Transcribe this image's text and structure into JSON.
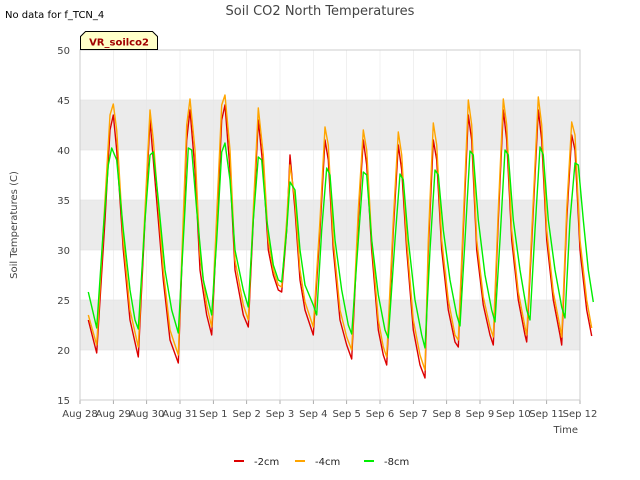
{
  "note": "No data for f_TCN_4",
  "badge": "VR_soilco2",
  "colors": {
    "band": "#ebebeb",
    "plot_bg": "#f4f4f4",
    "grid": "#ffffff",
    "frame": "#cccccc"
  },
  "chart_data": {
    "type": "line",
    "title": "Soil CO2 North Temperatures",
    "xlabel": "Time",
    "ylabel": "Soil Temperatures (C)",
    "ylim": [
      15,
      50
    ],
    "yticks": [
      15,
      20,
      25,
      30,
      35,
      40,
      45,
      50
    ],
    "xlim": [
      0,
      15
    ],
    "xticks": [
      "Aug 28",
      "Aug 29",
      "Aug 30",
      "Aug 31",
      "Sep 1",
      "Sep 2",
      "Sep 3",
      "Sep 4",
      "Sep 5",
      "Sep 6",
      "Sep 7",
      "Sep 8",
      "Sep 9",
      "Sep 10",
      "Sep 11",
      "Sep 12"
    ],
    "x_unit": "days since Aug 28 00:00",
    "legend_position": "bottom-center",
    "grid": true,
    "series": [
      {
        "name": "-2cm",
        "color": "#dd0000",
        "points": [
          [
            0.25,
            23
          ],
          [
            0.5,
            19.7
          ],
          [
            0.75,
            33
          ],
          [
            0.9,
            42
          ],
          [
            1.0,
            43.5
          ],
          [
            1.1,
            40
          ],
          [
            1.3,
            30
          ],
          [
            1.5,
            23
          ],
          [
            1.7,
            20
          ],
          [
            1.75,
            19.3
          ],
          [
            1.95,
            33
          ],
          [
            2.1,
            43
          ],
          [
            2.2,
            39
          ],
          [
            2.5,
            27
          ],
          [
            2.7,
            21
          ],
          [
            2.95,
            18.7
          ],
          [
            3.05,
            28
          ],
          [
            3.2,
            41
          ],
          [
            3.3,
            44
          ],
          [
            3.45,
            38
          ],
          [
            3.6,
            28
          ],
          [
            3.8,
            23.5
          ],
          [
            3.95,
            21.5
          ],
          [
            4.1,
            32
          ],
          [
            4.25,
            43
          ],
          [
            4.35,
            44.5
          ],
          [
            4.5,
            38
          ],
          [
            4.65,
            28
          ],
          [
            4.9,
            23.5
          ],
          [
            5.05,
            22.3
          ],
          [
            5.2,
            33
          ],
          [
            5.35,
            43
          ],
          [
            5.5,
            38
          ],
          [
            5.65,
            30
          ],
          [
            5.8,
            27.5
          ],
          [
            5.95,
            26
          ],
          [
            6.05,
            25.8
          ],
          [
            6.2,
            32
          ],
          [
            6.3,
            39.5
          ],
          [
            6.45,
            34
          ],
          [
            6.6,
            27
          ],
          [
            6.75,
            24
          ],
          [
            7.0,
            21.5
          ],
          [
            7.2,
            32
          ],
          [
            7.35,
            41
          ],
          [
            7.45,
            39
          ],
          [
            7.6,
            30
          ],
          [
            7.8,
            23
          ],
          [
            8.0,
            20.5
          ],
          [
            8.15,
            19.1
          ],
          [
            8.35,
            33
          ],
          [
            8.5,
            41
          ],
          [
            8.6,
            38.5
          ],
          [
            8.75,
            30
          ],
          [
            8.95,
            22
          ],
          [
            9.1,
            19.5
          ],
          [
            9.2,
            18.5
          ],
          [
            9.4,
            32
          ],
          [
            9.55,
            40.5
          ],
          [
            9.65,
            38
          ],
          [
            9.8,
            30
          ],
          [
            10.0,
            22
          ],
          [
            10.2,
            18.5
          ],
          [
            10.35,
            17.2
          ],
          [
            10.45,
            30
          ],
          [
            10.6,
            41
          ],
          [
            10.7,
            39
          ],
          [
            10.85,
            30
          ],
          [
            11.05,
            24
          ],
          [
            11.25,
            20.8
          ],
          [
            11.35,
            20.3
          ],
          [
            11.5,
            32
          ],
          [
            11.65,
            43.5
          ],
          [
            11.75,
            41
          ],
          [
            11.9,
            30
          ],
          [
            12.1,
            24.5
          ],
          [
            12.3,
            21.5
          ],
          [
            12.4,
            20.5
          ],
          [
            12.55,
            33
          ],
          [
            12.7,
            44
          ],
          [
            12.8,
            41
          ],
          [
            12.95,
            31
          ],
          [
            13.15,
            25
          ],
          [
            13.35,
            21.5
          ],
          [
            13.4,
            20.8
          ],
          [
            13.6,
            34
          ],
          [
            13.75,
            44
          ],
          [
            13.85,
            41
          ],
          [
            14.0,
            31
          ],
          [
            14.2,
            25
          ],
          [
            14.4,
            21.5
          ],
          [
            14.45,
            20.5
          ],
          [
            14.6,
            33
          ],
          [
            14.75,
            41.5
          ],
          [
            14.85,
            40
          ],
          [
            15.0,
            30
          ],
          [
            15.2,
            24
          ],
          [
            15.35,
            21.4
          ]
        ]
      },
      {
        "name": "-4cm",
        "color": "#ffa500",
        "points": [
          [
            0.25,
            23.5
          ],
          [
            0.5,
            20.5
          ],
          [
            0.75,
            35
          ],
          [
            0.9,
            43.5
          ],
          [
            1.0,
            44.6
          ],
          [
            1.1,
            42
          ],
          [
            1.3,
            31
          ],
          [
            1.5,
            24
          ],
          [
            1.7,
            21
          ],
          [
            1.75,
            20.3
          ],
          [
            1.95,
            34
          ],
          [
            2.1,
            44
          ],
          [
            2.2,
            41
          ],
          [
            2.5,
            28
          ],
          [
            2.7,
            22
          ],
          [
            2.95,
            19.5
          ],
          [
            3.05,
            29
          ],
          [
            3.2,
            42.5
          ],
          [
            3.3,
            45.1
          ],
          [
            3.45,
            40
          ],
          [
            3.6,
            29.5
          ],
          [
            3.8,
            24.5
          ],
          [
            3.95,
            22.3
          ],
          [
            4.1,
            33.5
          ],
          [
            4.25,
            44.5
          ],
          [
            4.35,
            45.5
          ],
          [
            4.5,
            40
          ],
          [
            4.65,
            29
          ],
          [
            4.9,
            24.5
          ],
          [
            5.05,
            23
          ],
          [
            5.2,
            34
          ],
          [
            5.35,
            44.2
          ],
          [
            5.5,
            39.5
          ],
          [
            5.65,
            31
          ],
          [
            5.8,
            28
          ],
          [
            5.95,
            26.5
          ],
          [
            6.05,
            26.3
          ],
          [
            6.2,
            33
          ],
          [
            6.3,
            38.5
          ],
          [
            6.45,
            35
          ],
          [
            6.6,
            28
          ],
          [
            6.75,
            24.8
          ],
          [
            7.0,
            22.3
          ],
          [
            7.2,
            33
          ],
          [
            7.35,
            42.3
          ],
          [
            7.45,
            40.5
          ],
          [
            7.6,
            31
          ],
          [
            7.8,
            24
          ],
          [
            8.0,
            21.3
          ],
          [
            8.15,
            20
          ],
          [
            8.35,
            34
          ],
          [
            8.5,
            42
          ],
          [
            8.6,
            40
          ],
          [
            8.75,
            31
          ],
          [
            8.95,
            23
          ],
          [
            9.1,
            20.3
          ],
          [
            9.2,
            19.3
          ],
          [
            9.4,
            33
          ],
          [
            9.55,
            41.8
          ],
          [
            9.65,
            39.5
          ],
          [
            9.8,
            31
          ],
          [
            10.0,
            23
          ],
          [
            10.2,
            19.5
          ],
          [
            10.35,
            18
          ],
          [
            10.45,
            31
          ],
          [
            10.6,
            42.7
          ],
          [
            10.7,
            40.5
          ],
          [
            10.85,
            31
          ],
          [
            11.05,
            25
          ],
          [
            11.25,
            21.5
          ],
          [
            11.35,
            21
          ],
          [
            11.5,
            33
          ],
          [
            11.65,
            45
          ],
          [
            11.75,
            42.5
          ],
          [
            11.9,
            31
          ],
          [
            12.1,
            25.3
          ],
          [
            12.3,
            22.3
          ],
          [
            12.4,
            21.3
          ],
          [
            12.55,
            34
          ],
          [
            12.7,
            45.1
          ],
          [
            12.8,
            42.5
          ],
          [
            12.95,
            32
          ],
          [
            13.15,
            25.8
          ],
          [
            13.35,
            22.3
          ],
          [
            13.4,
            21.5
          ],
          [
            13.6,
            35
          ],
          [
            13.75,
            45.3
          ],
          [
            13.85,
            42.5
          ],
          [
            14.0,
            32
          ],
          [
            14.2,
            25.8
          ],
          [
            14.4,
            22.3
          ],
          [
            14.45,
            21.3
          ],
          [
            14.6,
            34
          ],
          [
            14.75,
            42.8
          ],
          [
            14.85,
            41.5
          ],
          [
            15.0,
            31
          ],
          [
            15.2,
            25
          ],
          [
            15.35,
            22.2
          ]
        ]
      },
      {
        "name": "-8cm",
        "color": "#00ee00",
        "points": [
          [
            0.25,
            25.8
          ],
          [
            0.5,
            22.2
          ],
          [
            0.7,
            32
          ],
          [
            0.85,
            38.5
          ],
          [
            0.95,
            40.2
          ],
          [
            1.1,
            39
          ],
          [
            1.3,
            32
          ],
          [
            1.5,
            26
          ],
          [
            1.65,
            23
          ],
          [
            1.75,
            22.1
          ],
          [
            1.95,
            33
          ],
          [
            2.1,
            39.5
          ],
          [
            2.2,
            39.8
          ],
          [
            2.35,
            35
          ],
          [
            2.55,
            28
          ],
          [
            2.75,
            24
          ],
          [
            2.95,
            21.7
          ],
          [
            3.1,
            31
          ],
          [
            3.25,
            40.2
          ],
          [
            3.35,
            40
          ],
          [
            3.5,
            34
          ],
          [
            3.7,
            27
          ],
          [
            3.95,
            23.5
          ],
          [
            4.1,
            31
          ],
          [
            4.25,
            39.8
          ],
          [
            4.35,
            40.7
          ],
          [
            4.5,
            37
          ],
          [
            4.65,
            30
          ],
          [
            4.9,
            26
          ],
          [
            5.05,
            24.3
          ],
          [
            5.2,
            33
          ],
          [
            5.35,
            39.3
          ],
          [
            5.45,
            39
          ],
          [
            5.6,
            33
          ],
          [
            5.8,
            28.5
          ],
          [
            5.95,
            27
          ],
          [
            6.05,
            26.8
          ],
          [
            6.2,
            32
          ],
          [
            6.3,
            36.8
          ],
          [
            6.45,
            36
          ],
          [
            6.6,
            30
          ],
          [
            6.75,
            26.5
          ],
          [
            7.0,
            24.5
          ],
          [
            7.1,
            23.5
          ],
          [
            7.25,
            32
          ],
          [
            7.4,
            38.2
          ],
          [
            7.5,
            37.5
          ],
          [
            7.65,
            31
          ],
          [
            7.85,
            26
          ],
          [
            8.05,
            22.5
          ],
          [
            8.15,
            21.6
          ],
          [
            8.35,
            31
          ],
          [
            8.5,
            37.8
          ],
          [
            8.6,
            37.5
          ],
          [
            8.75,
            31
          ],
          [
            8.95,
            25.5
          ],
          [
            9.15,
            22
          ],
          [
            9.25,
            21.2
          ],
          [
            9.45,
            31
          ],
          [
            9.6,
            37.6
          ],
          [
            9.7,
            37
          ],
          [
            9.85,
            31
          ],
          [
            10.05,
            25
          ],
          [
            10.25,
            21.5
          ],
          [
            10.35,
            20.2
          ],
          [
            10.5,
            30
          ],
          [
            10.65,
            38
          ],
          [
            10.75,
            37.5
          ],
          [
            10.9,
            32
          ],
          [
            11.1,
            27
          ],
          [
            11.3,
            23.5
          ],
          [
            11.4,
            22.4
          ],
          [
            11.55,
            31
          ],
          [
            11.7,
            39.9
          ],
          [
            11.8,
            39.5
          ],
          [
            11.95,
            33
          ],
          [
            12.15,
            27.5
          ],
          [
            12.35,
            24
          ],
          [
            12.45,
            22.8
          ],
          [
            12.6,
            31
          ],
          [
            12.75,
            40
          ],
          [
            12.85,
            39.5
          ],
          [
            13.0,
            33
          ],
          [
            13.2,
            28
          ],
          [
            13.4,
            24
          ],
          [
            13.5,
            23
          ],
          [
            13.65,
            32
          ],
          [
            13.8,
            40.3
          ],
          [
            13.9,
            39.5
          ],
          [
            14.05,
            33
          ],
          [
            14.25,
            28
          ],
          [
            14.45,
            24.3
          ],
          [
            14.55,
            23.2
          ],
          [
            14.7,
            33
          ],
          [
            14.85,
            38.7
          ],
          [
            14.95,
            38.5
          ],
          [
            15.1,
            33
          ],
          [
            15.25,
            28
          ],
          [
            15.4,
            24.8
          ]
        ]
      }
    ]
  }
}
